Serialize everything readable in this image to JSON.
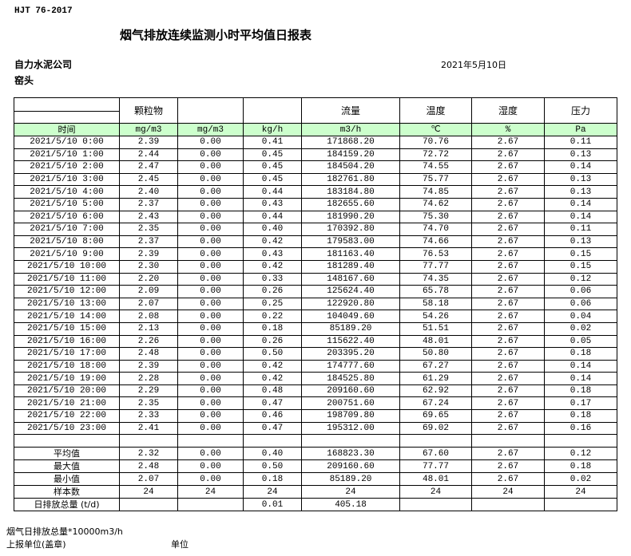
{
  "standard": "HJT  76-2017",
  "title": "烟气排放连续监测小时平均值日报表",
  "company": "自力水泥公司",
  "date": "2021年5月10日",
  "unit_name": "窑头",
  "header": {
    "names": [
      "",
      "颗粒物",
      "",
      "",
      "流量",
      "温度",
      "湿度",
      "压力"
    ],
    "units": [
      "时间",
      "mg/m3",
      "mg/m3",
      "kg/h",
      "m3/h",
      "℃",
      "%",
      "Pa"
    ]
  },
  "rows": [
    [
      "2021/5/10 0:00",
      "2.39",
      "0.00",
      "0.41",
      "171868.20",
      "70.76",
      "2.67",
      "0.11"
    ],
    [
      "2021/5/10 1:00",
      "2.44",
      "0.00",
      "0.45",
      "184159.20",
      "72.72",
      "2.67",
      "0.13"
    ],
    [
      "2021/5/10 2:00",
      "2.47",
      "0.00",
      "0.45",
      "184504.20",
      "74.55",
      "2.67",
      "0.14"
    ],
    [
      "2021/5/10 3:00",
      "2.45",
      "0.00",
      "0.45",
      "182761.80",
      "75.77",
      "2.67",
      "0.13"
    ],
    [
      "2021/5/10 4:00",
      "2.40",
      "0.00",
      "0.44",
      "183184.80",
      "74.85",
      "2.67",
      "0.13"
    ],
    [
      "2021/5/10 5:00",
      "2.37",
      "0.00",
      "0.43",
      "182655.60",
      "74.62",
      "2.67",
      "0.14"
    ],
    [
      "2021/5/10 6:00",
      "2.43",
      "0.00",
      "0.44",
      "181990.20",
      "75.30",
      "2.67",
      "0.14"
    ],
    [
      "2021/5/10 7:00",
      "2.35",
      "0.00",
      "0.40",
      "170392.80",
      "74.70",
      "2.67",
      "0.11"
    ],
    [
      "2021/5/10 8:00",
      "2.37",
      "0.00",
      "0.42",
      "179583.00",
      "74.66",
      "2.67",
      "0.13"
    ],
    [
      "2021/5/10 9:00",
      "2.39",
      "0.00",
      "0.43",
      "181163.40",
      "76.53",
      "2.67",
      "0.15"
    ],
    [
      "2021/5/10 10:00",
      "2.30",
      "0.00",
      "0.42",
      "181289.40",
      "77.77",
      "2.67",
      "0.15"
    ],
    [
      "2021/5/10 11:00",
      "2.20",
      "0.00",
      "0.33",
      "148167.60",
      "74.35",
      "2.67",
      "0.12"
    ],
    [
      "2021/5/10 12:00",
      "2.09",
      "0.00",
      "0.26",
      "125624.40",
      "65.78",
      "2.67",
      "0.06"
    ],
    [
      "2021/5/10 13:00",
      "2.07",
      "0.00",
      "0.25",
      "122920.80",
      "58.18",
      "2.67",
      "0.06"
    ],
    [
      "2021/5/10 14:00",
      "2.08",
      "0.00",
      "0.22",
      "104049.60",
      "54.26",
      "2.67",
      "0.04"
    ],
    [
      "2021/5/10 15:00",
      "2.13",
      "0.00",
      "0.18",
      "85189.20",
      "51.51",
      "2.67",
      "0.02"
    ],
    [
      "2021/5/10 16:00",
      "2.26",
      "0.00",
      "0.26",
      "115622.40",
      "48.01",
      "2.67",
      "0.05"
    ],
    [
      "2021/5/10 17:00",
      "2.48",
      "0.00",
      "0.50",
      "203395.20",
      "50.80",
      "2.67",
      "0.18"
    ],
    [
      "2021/5/10 18:00",
      "2.39",
      "0.00",
      "0.42",
      "174777.60",
      "67.27",
      "2.67",
      "0.14"
    ],
    [
      "2021/5/10 19:00",
      "2.28",
      "0.00",
      "0.42",
      "184525.80",
      "61.29",
      "2.67",
      "0.14"
    ],
    [
      "2021/5/10 20:00",
      "2.29",
      "0.00",
      "0.48",
      "209160.60",
      "62.92",
      "2.67",
      "0.18"
    ],
    [
      "2021/5/10 21:00",
      "2.35",
      "0.00",
      "0.47",
      "200751.60",
      "67.24",
      "2.67",
      "0.17"
    ],
    [
      "2021/5/10 22:00",
      "2.33",
      "0.00",
      "0.46",
      "198709.80",
      "69.65",
      "2.67",
      "0.18"
    ],
    [
      "2021/5/10 23:00",
      "2.41",
      "0.00",
      "0.47",
      "195312.00",
      "69.02",
      "2.67",
      "0.16"
    ]
  ],
  "stats": [
    [
      "平均值",
      "2.32",
      "0.00",
      "0.40",
      "168823.30",
      "67.60",
      "2.67",
      "0.12"
    ],
    [
      "最大值",
      "2.48",
      "0.00",
      "0.50",
      "209160.60",
      "77.77",
      "2.67",
      "0.18"
    ],
    [
      "最小值",
      "2.07",
      "0.00",
      "0.18",
      "85189.20",
      "48.01",
      "2.67",
      "0.02"
    ],
    [
      "样本数",
      "24",
      "24",
      "24",
      "24",
      "24",
      "24",
      "24"
    ],
    [
      "日排放总量 (t/d)",
      "",
      "",
      "0.01",
      "405.18",
      "",
      "",
      ""
    ]
  ],
  "footer": {
    "note": "烟气日排放总量*10000m3/h",
    "reporter": "上报单位(盖章)",
    "unit_label": "单位"
  },
  "colors": {
    "header_band": "#ccffcc"
  }
}
